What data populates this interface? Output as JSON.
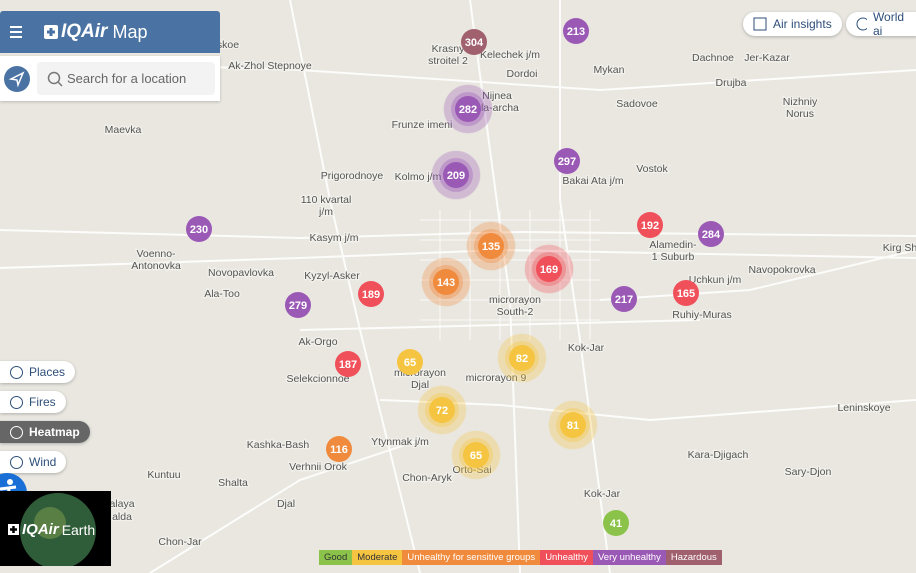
{
  "header": {
    "logo": "IQAir",
    "title": "Map"
  },
  "search": {
    "placeholder": "Search for a location"
  },
  "top_buttons": [
    "Air insights",
    "World ai"
  ],
  "layers": [
    "Places",
    "Fires",
    "Heatmap",
    "Wind"
  ],
  "earth": {
    "logo": "IQAir",
    "title": "Earth"
  },
  "legend": [
    "Good",
    "Moderate",
    "Unhealthy for sensitive groups",
    "Unhealthy",
    "Very unhealthy",
    "Hazardous"
  ],
  "stations": [
    "304",
    "213",
    "282",
    "297",
    "209",
    "230",
    "192",
    "284",
    "135",
    "169",
    "143",
    "189",
    "279",
    "217",
    "165",
    "187",
    "65",
    "82",
    "72",
    "81",
    "116",
    "65",
    "41"
  ],
  "places": [
    [
      "skoe"
    ],
    [
      "Krasny",
      "stroitel 2"
    ],
    [
      "Kelechek j/m"
    ],
    [
      "Dordoi"
    ],
    [
      "Mykan"
    ],
    [
      "Dachnoe"
    ],
    [
      "Jer-Kazar"
    ],
    [
      "Ak-Zhol Stepnoye"
    ],
    [
      "Drujba"
    ],
    [
      "Nijnea",
      "ala-archa"
    ],
    [
      "Sadovoe"
    ],
    [
      "Nizhniy",
      "Norus"
    ],
    [
      "Maevka"
    ],
    [
      "Frunze imeni"
    ],
    [
      "Bakai Ata j/m"
    ],
    [
      "Vostok"
    ],
    [
      "Prigorodnoye"
    ],
    [
      "Kolmo j/m"
    ],
    [
      "110 kvartal",
      "j/m"
    ],
    [
      "Kasym j/m"
    ],
    [
      "Alamedin-",
      "1 Suburb"
    ],
    [
      "Kirg Sh"
    ],
    [
      "Voenno-",
      "Antonovka"
    ],
    [
      "Novopavlovka"
    ],
    [
      "Kyzyl-Asker"
    ],
    [
      "Navopokrovka"
    ],
    [
      "Uchkun j/m"
    ],
    [
      "Ala-Too"
    ],
    [
      "microrayon",
      "South-2"
    ],
    [
      "Ruhiy-Muras"
    ],
    [
      "Ak-Orgo"
    ],
    [
      "Kok-Jar"
    ],
    [
      "Selekcionnoe"
    ],
    [
      "microrayon",
      "Djal"
    ],
    [
      "microrayon 9"
    ],
    [
      "Leninskoye"
    ],
    [
      "Kashka-Bash"
    ],
    [
      "Ytynmak j/m"
    ],
    [
      "Kara-Djigach"
    ],
    [
      "Verhnii Orok"
    ],
    [
      "Sary-Djon"
    ],
    [
      "Kuntuu"
    ],
    [
      "Orto-Sai"
    ],
    [
      "Chon-Aryk"
    ],
    [
      "Shalta"
    ],
    [
      "Kok-Jar"
    ],
    [
      "Djal"
    ],
    [
      "alaya"
    ],
    [
      "alda"
    ],
    [
      "Chon-Jar"
    ]
  ]
}
